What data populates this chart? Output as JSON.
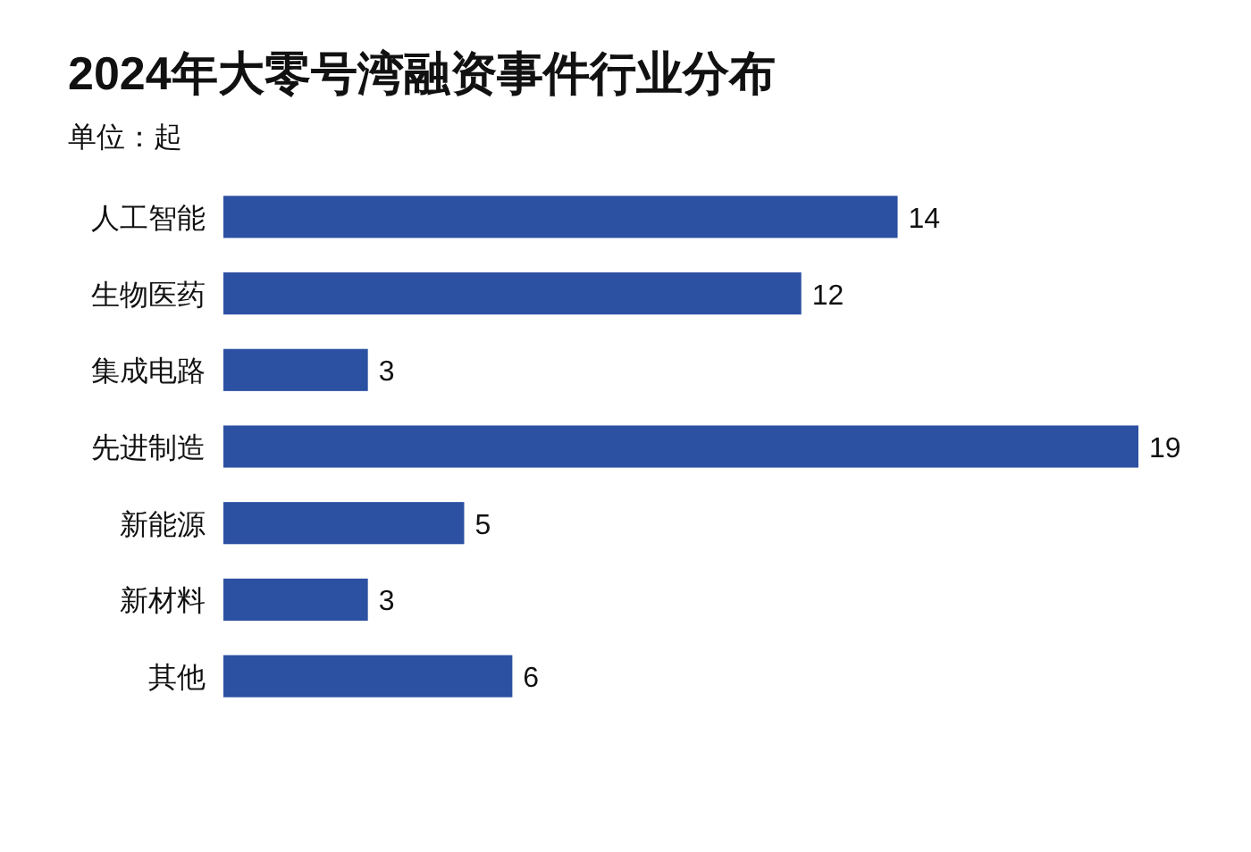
{
  "chart_data": {
    "type": "bar",
    "orientation": "horizontal",
    "title": "2024年大零号湾融资事件行业分布",
    "subtitle": "单位：起",
    "categories": [
      "人工智能",
      "生物医药",
      "集成电路",
      "先进制造",
      "新能源",
      "新材料",
      "其他"
    ],
    "values": [
      14,
      12,
      3,
      19,
      5,
      3,
      6
    ],
    "color": "#2c50a2",
    "data_labels": true
  }
}
